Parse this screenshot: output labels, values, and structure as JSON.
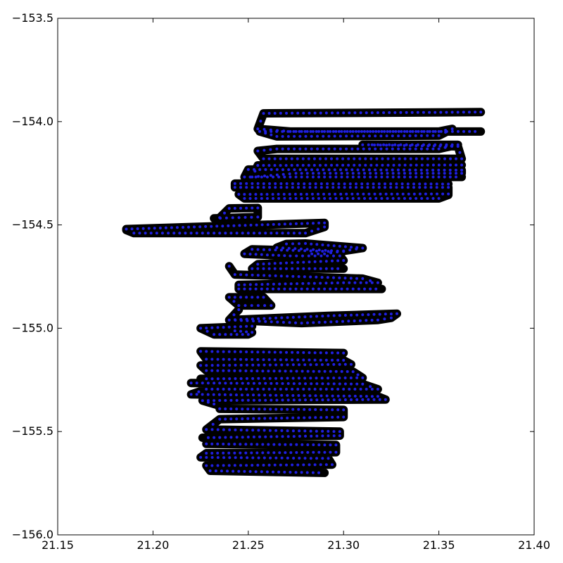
{
  "chart_data": {
    "type": "scatter",
    "title": "",
    "xlabel": "",
    "ylabel": "",
    "xlim": [
      21.15,
      21.4
    ],
    "ylim": [
      -156.0,
      -153.5
    ],
    "xticks": [
      21.15,
      21.2,
      21.25,
      21.3,
      21.35,
      21.4
    ],
    "yticks": [
      -153.5,
      -154.0,
      -154.5,
      -155.0,
      -155.5,
      -156.0
    ],
    "xtick_labels": [
      "21.15",
      "21.20",
      "21.25",
      "21.30",
      "21.35",
      "21.40"
    ],
    "ytick_labels": [
      "−153.5",
      "−154.0",
      "−154.5",
      "−155.0",
      "−155.5",
      "−156.0"
    ],
    "grid": false,
    "marker_edge_color": "#000000",
    "marker_face_color": "#1f1fe0",
    "series": [
      {
        "x": [
          21.372,
          21.258,
          21.255,
          21.272,
          21.35,
          21.357,
          21.35,
          21.265,
          21.256,
          21.372
        ],
        "y": [
          -153.954,
          -153.96,
          -154.035,
          -154.048,
          -154.048,
          -154.035,
          -154.068,
          -154.072,
          -154.048,
          -154.048
        ]
      },
      {
        "x": [
          21.31,
          21.36,
          21.362,
          21.258,
          21.255,
          21.265,
          21.35,
          21.36,
          21.312
        ],
        "y": [
          -154.112,
          -154.12,
          -154.18,
          -154.18,
          -154.142,
          -154.132,
          -154.132,
          -154.112,
          -154.112
        ]
      },
      {
        "x": [
          21.362,
          21.255,
          21.252,
          21.275,
          21.362,
          21.362,
          21.25,
          21.248,
          21.362
        ],
        "y": [
          -154.21,
          -154.212,
          -154.268,
          -154.25,
          -154.25,
          -154.235,
          -154.232,
          -154.268,
          -154.268
        ]
      },
      {
        "x": [
          21.355,
          21.243,
          21.243,
          21.355,
          21.355,
          21.245,
          21.248,
          21.35,
          21.355
        ],
        "y": [
          -154.302,
          -154.3,
          -154.318,
          -154.318,
          -154.35,
          -154.352,
          -154.372,
          -154.372,
          -154.355
        ]
      },
      {
        "x": [
          21.235,
          21.24,
          21.255,
          21.255,
          21.232
        ],
        "y": [
          -154.465,
          -154.42,
          -154.418,
          -154.462,
          -154.468
        ]
      },
      {
        "x": [
          21.186,
          21.29,
          21.29,
          21.28,
          21.19,
          21.186
        ],
        "y": [
          -154.52,
          -154.49,
          -154.51,
          -154.54,
          -154.54,
          -154.525
        ]
      },
      {
        "x": [
          21.292,
          21.252,
          21.248,
          21.272,
          21.298,
          21.3,
          21.255,
          21.252,
          21.3
        ],
        "y": [
          -154.628,
          -154.618,
          -154.64,
          -154.65,
          -154.65,
          -154.672,
          -154.69,
          -154.712,
          -154.712
        ]
      },
      {
        "x": [
          21.3,
          21.265,
          21.27,
          21.28,
          21.31,
          21.29,
          21.28
        ],
        "y": [
          -154.628,
          -154.61,
          -154.592,
          -154.59,
          -154.612,
          -154.64,
          -154.64
        ]
      },
      {
        "x": [
          21.24,
          21.243,
          21.31,
          21.318,
          21.3,
          21.245,
          21.245,
          21.32
        ],
        "y": [
          -154.7,
          -154.74,
          -154.76,
          -154.78,
          -154.78,
          -154.79,
          -154.81,
          -154.81
        ]
      },
      {
        "x": [
          21.24,
          21.258,
          21.262,
          21.245,
          21.24
        ],
        "y": [
          -154.85,
          -154.85,
          -154.89,
          -154.89,
          -154.85
        ]
      },
      {
        "x": [
          21.245,
          21.24,
          21.278,
          21.318,
          21.325,
          21.328,
          21.292,
          21.24
        ],
        "y": [
          -154.91,
          -154.96,
          -154.975,
          -154.96,
          -154.95,
          -154.93,
          -154.94,
          -154.96
        ]
      },
      {
        "x": [
          21.252,
          21.225,
          21.232,
          21.25,
          21.252,
          21.24
        ],
        "y": [
          -154.99,
          -155.0,
          -155.03,
          -155.03,
          -155.02,
          -155.01
        ]
      },
      {
        "x": [
          21.3,
          21.225,
          21.228,
          21.3,
          21.304,
          21.225,
          21.228,
          21.305,
          21.31,
          21.225
        ],
        "y": [
          -155.12,
          -155.112,
          -155.15,
          -155.155,
          -155.175,
          -155.18,
          -155.205,
          -155.21,
          -155.24,
          -155.245
        ]
      },
      {
        "x": [
          21.22,
          21.31,
          21.318,
          21.228,
          21.22,
          21.318,
          21.322,
          21.226,
          21.235
        ],
        "y": [
          -155.265,
          -155.27,
          -155.295,
          -155.295,
          -155.32,
          -155.33,
          -155.345,
          -155.35,
          -155.375
        ]
      },
      {
        "x": [
          21.235,
          21.3,
          21.3,
          21.235,
          21.228,
          21.298,
          21.298,
          21.226
        ],
        "y": [
          -155.39,
          -155.395,
          -155.43,
          -155.44,
          -155.49,
          -155.5,
          -155.52,
          -155.53
        ]
      },
      {
        "x": [
          21.228,
          21.296,
          21.296,
          21.228,
          21.225,
          21.292,
          21.294,
          21.228,
          21.23,
          21.29
        ],
        "y": [
          -155.56,
          -155.565,
          -155.6,
          -155.605,
          -155.625,
          -155.63,
          -155.66,
          -155.665,
          -155.69,
          -155.7
        ]
      }
    ]
  }
}
